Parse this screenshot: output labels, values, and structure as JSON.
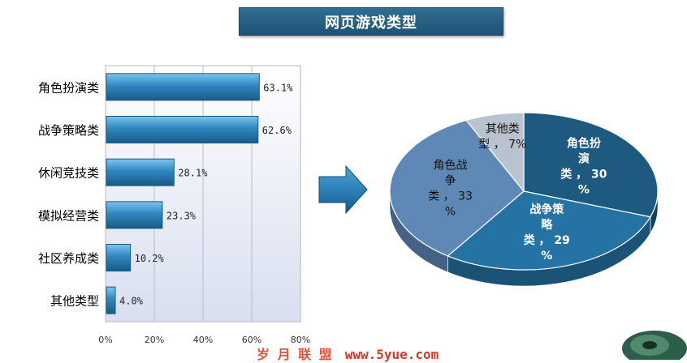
{
  "chart_data": [
    {
      "type": "bar",
      "orientation": "horizontal",
      "categories": [
        "角色扮演类",
        "战争策略类",
        "休闲竞技类",
        "模拟经营类",
        "社区养成类",
        "其他类型"
      ],
      "values": [
        63.1,
        62.6,
        28.1,
        23.3,
        10.2,
        4.0
      ],
      "value_labels": [
        "63.1%",
        "62.6%",
        "28.1%",
        "23.3%",
        "10.2%",
        "4.0%"
      ],
      "xlim": [
        0,
        80
      ],
      "xticks": [
        "0%",
        "20%",
        "40%",
        "60%",
        "80%"
      ],
      "grid": true,
      "color": "#2f86c0"
    },
    {
      "type": "pie",
      "style": "3d",
      "slices": [
        {
          "label_lines": [
            "角色扮",
            "演",
            "类 ， 30",
            "%"
          ],
          "value": 30,
          "color": "#1e5a80"
        },
        {
          "label_lines": [
            "战争策",
            "略",
            "类 ， 29",
            "%"
          ],
          "value": 29,
          "color": "#2573a5"
        },
        {
          "label_lines": [
            "角色战",
            "争",
            "类 ， 33",
            "%"
          ],
          "value": 33,
          "color": "#5e88b6"
        },
        {
          "label_lines": [
            "其他类",
            "型 ， 7%"
          ],
          "value": 7,
          "color": "#b9c3d0"
        }
      ]
    }
  ],
  "page": {
    "title": "网页游戏类型"
  },
  "watermark": {
    "text": "岁 月 联 盟",
    "url": "www.5yue.com"
  },
  "colors": {
    "title_bg": "#2a6789",
    "arrow": "#1e6fa8",
    "plot_bg": "#e9ecf5"
  }
}
